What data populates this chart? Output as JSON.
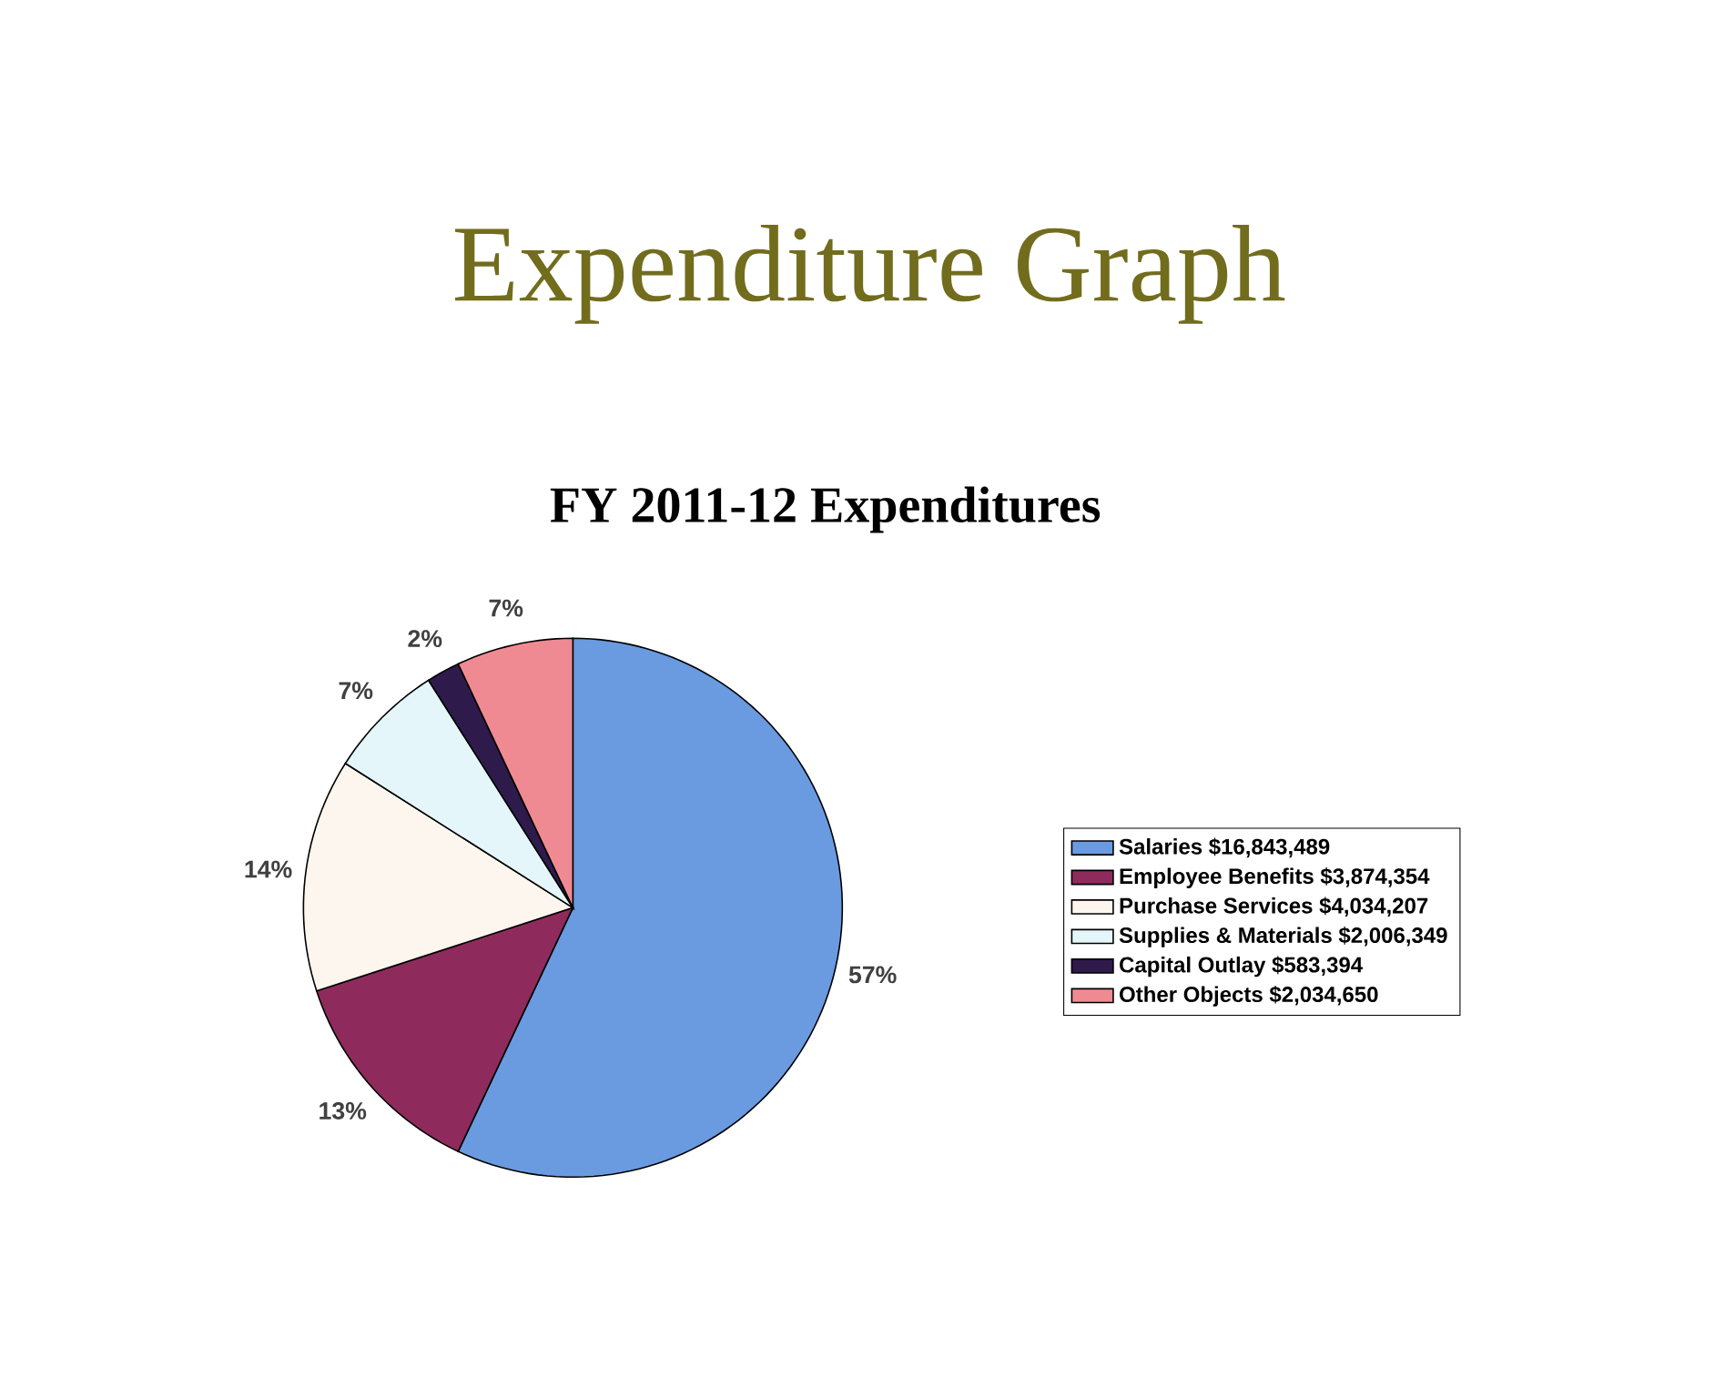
{
  "chart_data": {
    "type": "pie",
    "title": "Expenditure Graph",
    "subtitle": "FY 2011-12 Expenditures",
    "categories": [
      "Salaries  $16,843,489",
      "Employee Benefits  $3,874,354",
      "Purchase Services  $4,034,207",
      "Supplies & Materials  $2,006,349",
      "Capital Outlay  $583,394",
      "Other Objects  $2,034,650"
    ],
    "values": [
      57,
      13,
      14,
      7,
      2,
      7
    ],
    "value_labels": [
      "57%",
      "13%",
      "14%",
      "7%",
      "2%",
      "7%"
    ],
    "colors": [
      "#6a9ae0",
      "#8e2b5c",
      "#fdf6ef",
      "#e4f6f9",
      "#2e1b4c",
      "#f08a92"
    ],
    "legend": "right"
  }
}
